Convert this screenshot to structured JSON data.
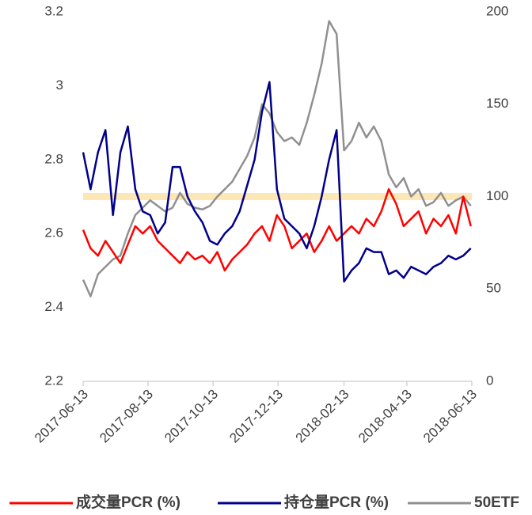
{
  "chart_data": {
    "type": "line",
    "x": [
      "2017-06-13",
      "2017-06-20",
      "2017-06-27",
      "2017-07-04",
      "2017-07-11",
      "2017-07-18",
      "2017-07-25",
      "2017-08-01",
      "2017-08-08",
      "2017-08-15",
      "2017-08-22",
      "2017-08-29",
      "2017-09-05",
      "2017-09-12",
      "2017-09-19",
      "2017-09-26",
      "2017-10-03",
      "2017-10-10",
      "2017-10-17",
      "2017-10-24",
      "2017-10-31",
      "2017-11-07",
      "2017-11-14",
      "2017-11-21",
      "2017-11-28",
      "2017-12-05",
      "2017-12-12",
      "2017-12-19",
      "2017-12-26",
      "2018-01-02",
      "2018-01-09",
      "2018-01-16",
      "2018-01-23",
      "2018-01-30",
      "2018-02-06",
      "2018-02-13",
      "2018-02-20",
      "2018-02-27",
      "2018-03-06",
      "2018-03-13",
      "2018-03-20",
      "2018-03-27",
      "2018-04-03",
      "2018-04-10",
      "2018-04-17",
      "2018-04-24",
      "2018-05-01",
      "2018-05-08",
      "2018-05-15",
      "2018-05-22",
      "2018-05-29",
      "2018-06-05",
      "2018-06-12"
    ],
    "xlim": [
      "2017-06-13",
      "2018-06-13"
    ],
    "xticks": [
      "2017-06-13",
      "2017-08-13",
      "2017-10-13",
      "2017-12-13",
      "2018-02-13",
      "2018-04-13",
      "2018-06-13"
    ],
    "ylim": [
      2.2,
      3.2
    ],
    "yticks": [
      2.2,
      2.4,
      2.6,
      2.8,
      3,
      3.2
    ],
    "y2lim": [
      0,
      200
    ],
    "y2ticks": [
      0,
      50,
      100,
      150,
      200
    ],
    "reference_line": {
      "value": 2.7,
      "color": "#fde7b5"
    },
    "series": [
      {
        "name": "成交量PCR (%)",
        "color": "#ff0000",
        "values": [
          2.61,
          2.56,
          2.54,
          2.58,
          2.55,
          2.52,
          2.57,
          2.62,
          2.6,
          2.62,
          2.58,
          2.56,
          2.54,
          2.52,
          2.55,
          2.53,
          2.54,
          2.52,
          2.55,
          2.5,
          2.53,
          2.55,
          2.57,
          2.6,
          2.62,
          2.58,
          2.65,
          2.62,
          2.56,
          2.58,
          2.6,
          2.55,
          2.58,
          2.62,
          2.58,
          2.6,
          2.62,
          2.6,
          2.64,
          2.62,
          2.66,
          2.72,
          2.68,
          2.62,
          2.64,
          2.66,
          2.6,
          2.64,
          2.62,
          2.65,
          2.6,
          2.7,
          2.62
        ]
      },
      {
        "name": "持仓量PCR (%)",
        "color": "#00008b",
        "values": [
          2.82,
          2.72,
          2.82,
          2.88,
          2.65,
          2.82,
          2.89,
          2.72,
          2.66,
          2.65,
          2.6,
          2.63,
          2.78,
          2.78,
          2.7,
          2.66,
          2.63,
          2.58,
          2.57,
          2.6,
          2.62,
          2.66,
          2.73,
          2.8,
          2.93,
          3.01,
          2.72,
          2.64,
          2.62,
          2.6,
          2.56,
          2.62,
          2.7,
          2.8,
          2.88,
          2.47,
          2.5,
          2.52,
          2.56,
          2.55,
          2.55,
          2.49,
          2.5,
          2.48,
          2.51,
          2.5,
          2.49,
          2.51,
          2.52,
          2.54,
          2.53,
          2.54,
          2.56
        ]
      },
      {
        "name": "50ETF",
        "color": "#909090",
        "axis": "y2",
        "values": [
          55,
          46,
          58,
          62,
          66,
          68,
          80,
          90,
          94,
          98,
          95,
          92,
          94,
          102,
          96,
          94,
          93,
          95,
          100,
          104,
          108,
          115,
          122,
          132,
          150,
          145,
          135,
          130,
          132,
          128,
          140,
          155,
          172,
          195,
          188,
          125,
          130,
          140,
          132,
          138,
          130,
          112,
          105,
          110,
          100,
          104,
          95,
          97,
          102,
          95,
          98,
          100,
          95
        ]
      }
    ]
  }
}
